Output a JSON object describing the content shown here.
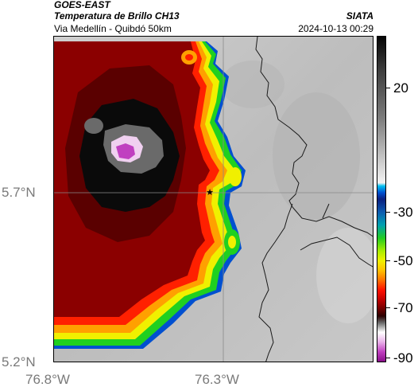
{
  "header": {
    "satellite": "GOES-EAST",
    "product": "Temperatura de Brillo CH13",
    "organization": "SIATA",
    "location": "Via Medellín - Quibdó 50km",
    "timestamp": "2024-10-13 00:29"
  },
  "axes": {
    "lat_labels": [
      "5.7°N",
      "5.2°N"
    ],
    "lon_labels": [
      "76.8°W",
      "76.3°W"
    ]
  },
  "colorbar": {
    "tick_labels": [
      "20",
      "-30",
      "-50",
      "-70",
      "-90"
    ]
  },
  "map": {
    "marker": "★",
    "cloud_colors": [
      "#8b0000",
      "#ff2000",
      "#ffa000",
      "#f0f000",
      "#20d020",
      "#0050d0"
    ],
    "core_colors": [
      "#0a0a0a",
      "#6a6a6a",
      "#f0d0f0",
      "#c040c0"
    ],
    "ground_color": "#c4c4c4",
    "border_color": "#1a1a1a"
  }
}
